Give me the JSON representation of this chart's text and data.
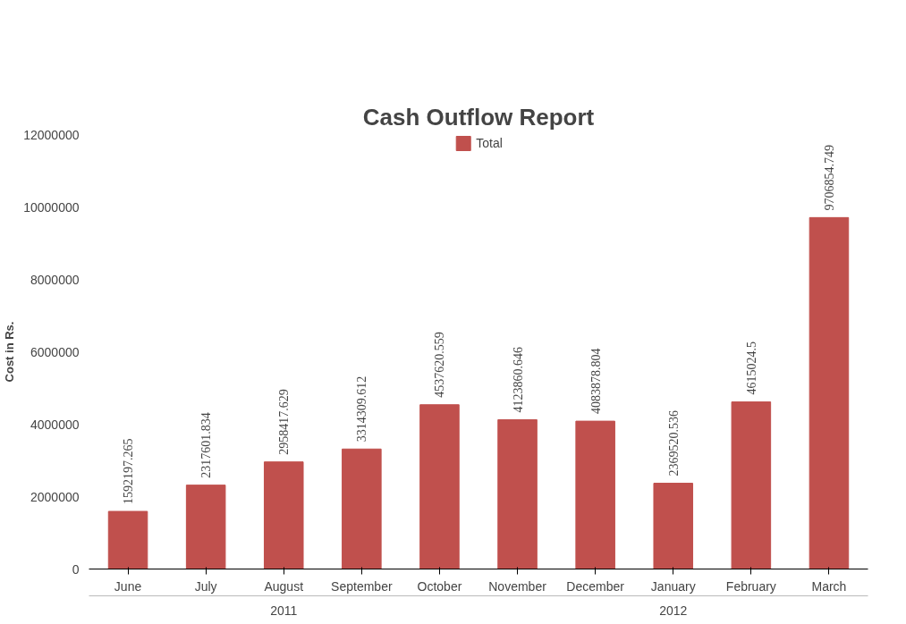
{
  "chart_data": {
    "type": "bar",
    "title": "Cash Outflow Report",
    "ylabel": "Cost in Rs.",
    "categories": [
      "June",
      "July",
      "August",
      "September",
      "October",
      "November",
      "December",
      "January",
      "February",
      "March"
    ],
    "series": [
      {
        "name": "Total",
        "color": "#c0504d",
        "values": [
          1592197.265,
          2317601.834,
          2958417.629,
          3314309.612,
          4537620.559,
          4123860.646,
          4083878.804,
          2369520.536,
          4615024.5,
          9706854.749
        ]
      }
    ],
    "ylim": [
      0,
      12000000
    ],
    "yticks": [
      0,
      2000000,
      4000000,
      6000000,
      8000000,
      10000000,
      12000000
    ],
    "data_labels": true,
    "legend": "top",
    "grid": false,
    "annotations": [
      "2011",
      "2012"
    ]
  }
}
